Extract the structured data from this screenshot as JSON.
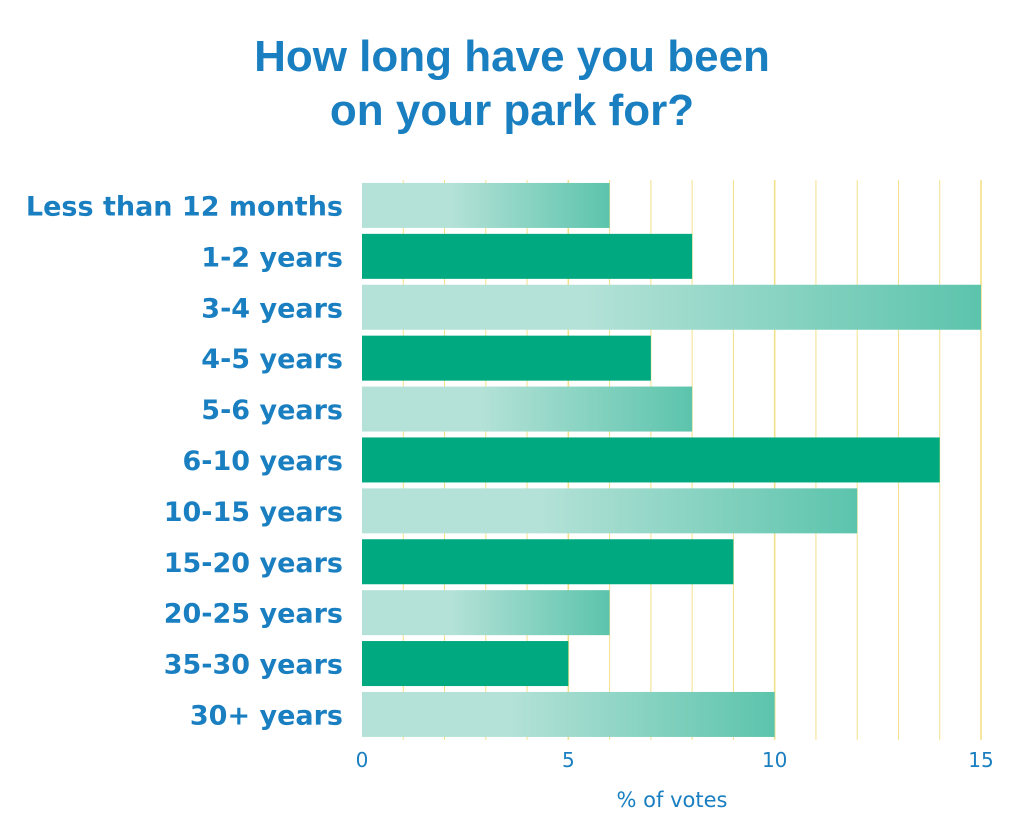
{
  "chart_data": {
    "type": "bar",
    "orientation": "horizontal",
    "title": [
      "How long have you been",
      "on your park for?"
    ],
    "categories": [
      "Less than 12 months",
      "1-2 years",
      "3-4 years",
      "4-5 years",
      "5-6 years",
      "6-10 years",
      "10-15 years",
      "15-20 years",
      "20-25 years",
      "35-30 years",
      "30+ years"
    ],
    "values": [
      6,
      8,
      15,
      7,
      8,
      14,
      12,
      9,
      6,
      5,
      10
    ],
    "xlabel": "% of votes",
    "ylabel": "",
    "xlim": [
      0,
      15
    ],
    "xticks": [
      0,
      5,
      10,
      15
    ],
    "grid": "vertical",
    "colors": {
      "text": "#1a7fc1",
      "solid_bar": "#00a980",
      "gradient_start": "#b5e2d8",
      "gradient_end": "#5cc4ac",
      "grid": "#f3e08a"
    }
  }
}
